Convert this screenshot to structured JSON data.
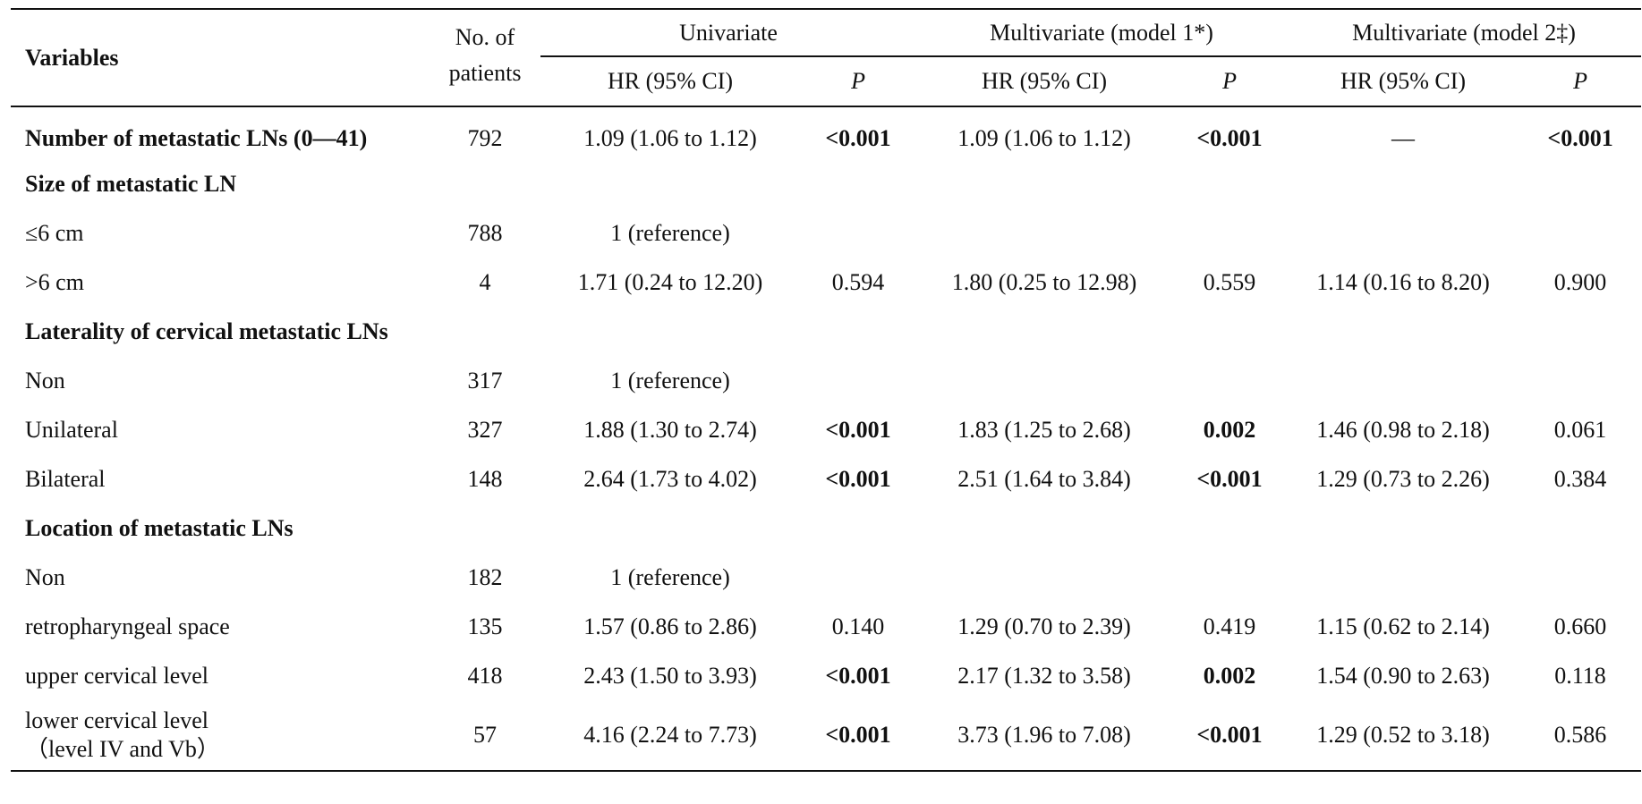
{
  "header": {
    "variables": "Variables",
    "no_of": "No. of",
    "patients": "patients",
    "univariate": "Univariate",
    "multivariate_1": "Multivariate (model 1*)",
    "multivariate_2": "Multivariate (model 2‡)",
    "hr_ci": "HR (95% CI)",
    "p": "P"
  },
  "rows": [
    {
      "label": "Number of metastatic LNs (0—41)",
      "n": "792",
      "hr1": "1.09 (1.06 to 1.12)",
      "p1": "<0.001",
      "hr2": "1.09 (1.06 to 1.12)",
      "p2": "<0.001",
      "hr3": "—",
      "p3": "<0.001"
    },
    {
      "label": "Size of metastatic LN"
    },
    {
      "label": "≤6 cm",
      "n": "788",
      "hr1": "1 (reference)"
    },
    {
      "label": ">6 cm",
      "n": "4",
      "hr1": "1.71 (0.24 to 12.20)",
      "p1": "0.594",
      "hr2": "1.80 (0.25 to 12.98)",
      "p2": "0.559",
      "hr3": "1.14 (0.16 to 8.20)",
      "p3": "0.900"
    },
    {
      "label": "Laterality of cervical metastatic LNs"
    },
    {
      "label": "Non",
      "n": "317",
      "hr1": "1 (reference)"
    },
    {
      "label": "Unilateral",
      "n": "327",
      "hr1": "1.88 (1.30 to 2.74)",
      "p1": "<0.001",
      "hr2": "1.83 (1.25 to 2.68)",
      "p2": "0.002",
      "hr3": "1.46 (0.98 to 2.18)",
      "p3": "0.061"
    },
    {
      "label": "Bilateral",
      "n": "148",
      "hr1": "2.64 (1.73 to 4.02)",
      "p1": "<0.001",
      "hr2": "2.51 (1.64 to 3.84)",
      "p2": "<0.001",
      "hr3": "1.29 (0.73 to 2.26)",
      "p3": "0.384"
    },
    {
      "label": "Location of metastatic LNs"
    },
    {
      "label": "Non",
      "n": "182",
      "hr1": "1 (reference)"
    },
    {
      "label": "retropharyngeal space",
      "n": "135",
      "hr1": "1.57 (0.86 to 2.86)",
      "p1": "0.140",
      "hr2": "1.29 (0.70 to 2.39)",
      "p2": "0.419",
      "hr3": "1.15 (0.62 to 2.14)",
      "p3": "0.660"
    },
    {
      "label": "upper cervical level",
      "n": "418",
      "hr1": "2.43 (1.50 to 3.93)",
      "p1": "<0.001",
      "hr2": "2.17 (1.32 to 3.58)",
      "p2": "0.002",
      "hr3": "1.54 (0.90 to 2.63)",
      "p3": "0.118"
    },
    {
      "label": "lower cervical level",
      "label2": "（level IV and Vb）",
      "n": "57",
      "hr1": "4.16 (2.24 to 7.73)",
      "p1": "<0.001",
      "hr2": "3.73 (1.96 to 7.08)",
      "p2": "<0.001",
      "hr3": "1.29 (0.52 to 3.18)",
      "p3": "0.586"
    }
  ]
}
